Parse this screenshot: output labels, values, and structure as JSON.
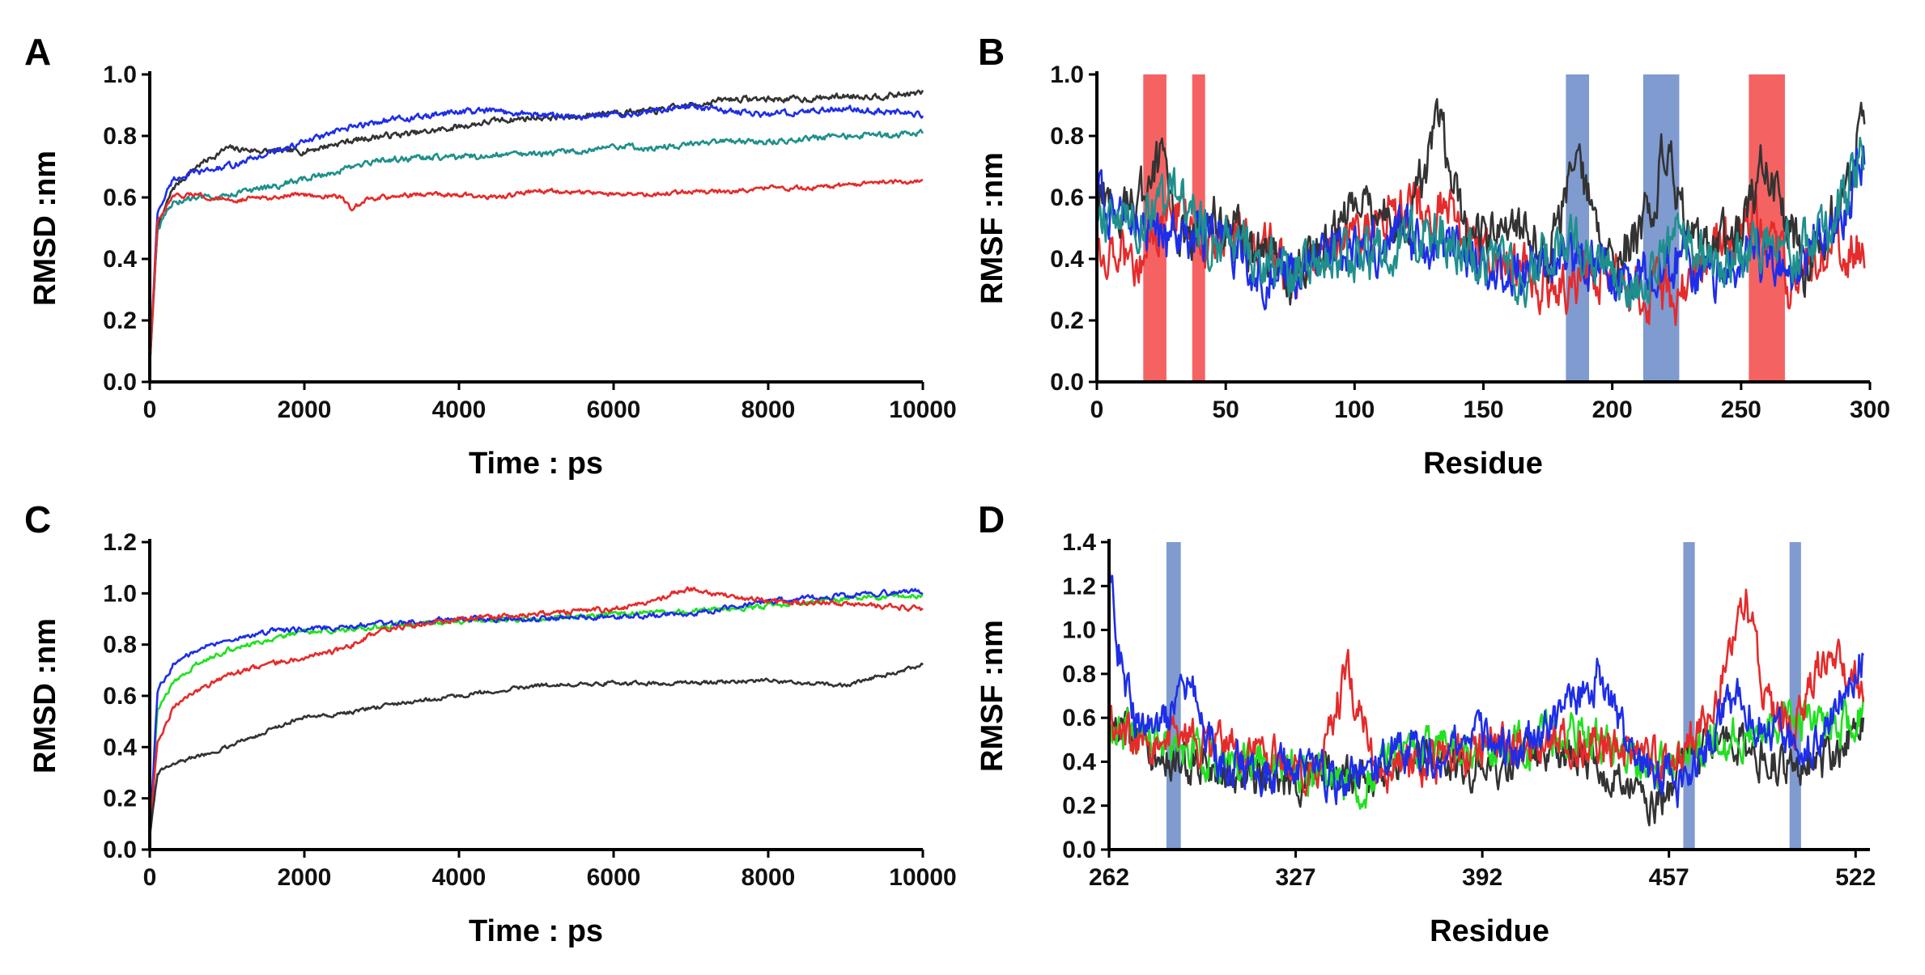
{
  "chart_data": [
    {
      "panel": "A",
      "type": "line",
      "title": "",
      "xlabel": "Time : ps",
      "ylabel": "RMSD :nm",
      "xlim": [
        0,
        10000
      ],
      "ylim": [
        0.0,
        1.0
      ],
      "xticks": [
        0,
        2000,
        4000,
        6000,
        8000,
        10000
      ],
      "xtick_labels": [
        "0",
        "2000",
        "4000",
        "6000",
        "8000",
        "10000"
      ],
      "yticks": [
        0.0,
        0.2,
        0.4,
        0.6,
        0.8,
        1.0
      ],
      "ytick_labels": [
        "0.0",
        "0.2",
        "0.4",
        "0.6",
        "0.8",
        "1.0"
      ],
      "highlights": [],
      "series": [
        {
          "name": "black",
          "color": "#333333",
          "noise": 0.008,
          "x": [
            0,
            100,
            300,
            600,
            1000,
            1500,
            2000,
            2500,
            3000,
            3500,
            4000,
            4500,
            5000,
            5500,
            6000,
            6500,
            7000,
            7500,
            8000,
            8500,
            9000,
            9500,
            10000
          ],
          "y": [
            0.05,
            0.5,
            0.63,
            0.7,
            0.76,
            0.75,
            0.75,
            0.78,
            0.8,
            0.81,
            0.83,
            0.85,
            0.86,
            0.86,
            0.88,
            0.88,
            0.9,
            0.92,
            0.92,
            0.92,
            0.93,
            0.93,
            0.94
          ]
        },
        {
          "name": "blue",
          "color": "#1e2ee8",
          "noise": 0.008,
          "x": [
            0,
            100,
            300,
            600,
            1000,
            1500,
            2000,
            2500,
            3000,
            3500,
            4000,
            4500,
            5000,
            5500,
            6000,
            6500,
            7000,
            7500,
            8000,
            8500,
            9000,
            9500,
            10000
          ],
          "y": [
            0.05,
            0.55,
            0.66,
            0.68,
            0.7,
            0.74,
            0.78,
            0.82,
            0.85,
            0.86,
            0.88,
            0.88,
            0.87,
            0.86,
            0.87,
            0.88,
            0.9,
            0.88,
            0.87,
            0.88,
            0.89,
            0.88,
            0.87
          ]
        },
        {
          "name": "teal",
          "color": "#1f8f8c",
          "noise": 0.008,
          "x": [
            0,
            100,
            300,
            600,
            1000,
            1500,
            2000,
            2500,
            3000,
            3500,
            4000,
            4500,
            5000,
            5500,
            6000,
            6500,
            7000,
            7500,
            8000,
            8500,
            9000,
            9500,
            10000
          ],
          "y": [
            0.05,
            0.5,
            0.58,
            0.6,
            0.61,
            0.63,
            0.66,
            0.69,
            0.72,
            0.73,
            0.73,
            0.74,
            0.74,
            0.75,
            0.77,
            0.76,
            0.77,
            0.78,
            0.78,
            0.79,
            0.8,
            0.8,
            0.81
          ]
        },
        {
          "name": "red",
          "color": "#e52b2b",
          "noise": 0.006,
          "x": [
            0,
            100,
            300,
            600,
            1000,
            1500,
            2000,
            2500,
            2600,
            2800,
            3000,
            3500,
            4000,
            4500,
            5000,
            5500,
            6000,
            6500,
            7000,
            7500,
            8000,
            8500,
            9000,
            9500,
            10000
          ],
          "y": [
            0.05,
            0.52,
            0.6,
            0.61,
            0.59,
            0.6,
            0.61,
            0.6,
            0.56,
            0.59,
            0.6,
            0.61,
            0.61,
            0.6,
            0.62,
            0.62,
            0.61,
            0.61,
            0.62,
            0.62,
            0.63,
            0.63,
            0.64,
            0.65,
            0.65
          ]
        }
      ]
    },
    {
      "panel": "B",
      "type": "line",
      "title": "",
      "xlabel": "Residue",
      "ylabel": "RMSF :nm",
      "xlim": [
        0,
        300
      ],
      "ylim": [
        0.0,
        1.0
      ],
      "xticks": [
        0,
        50,
        100,
        150,
        200,
        250,
        300
      ],
      "xtick_labels": [
        "0",
        "50",
        "100",
        "150",
        "200",
        "250",
        "300"
      ],
      "yticks": [
        0.0,
        0.2,
        0.4,
        0.6,
        0.8,
        1.0
      ],
      "ytick_labels": [
        "0.0",
        "0.2",
        "0.4",
        "0.6",
        "0.8",
        "1.0"
      ],
      "highlights": [
        {
          "from": 18,
          "to": 27,
          "color": "#f56262"
        },
        {
          "from": 37,
          "to": 42,
          "color": "#f56262"
        },
        {
          "from": 182,
          "to": 191,
          "color": "#7f9bd0"
        },
        {
          "from": 212,
          "to": 226,
          "color": "#7f9bd0"
        },
        {
          "from": 253,
          "to": 267,
          "color": "#f56262"
        }
      ],
      "series": [
        {
          "name": "red",
          "color": "#e52b2b",
          "noise": 0.07,
          "x": [
            0,
            15,
            30,
            45,
            60,
            75,
            90,
            105,
            120,
            135,
            150,
            165,
            180,
            195,
            210,
            225,
            240,
            255,
            270,
            285,
            298
          ],
          "y": [
            0.45,
            0.42,
            0.55,
            0.45,
            0.48,
            0.36,
            0.42,
            0.5,
            0.56,
            0.55,
            0.42,
            0.35,
            0.32,
            0.35,
            0.3,
            0.28,
            0.42,
            0.52,
            0.3,
            0.45,
            0.43
          ]
        },
        {
          "name": "black",
          "color": "#333333",
          "noise": 0.07,
          "x": [
            0,
            15,
            25,
            35,
            45,
            60,
            75,
            90,
            105,
            120,
            133,
            145,
            160,
            175,
            186,
            200,
            215,
            220,
            235,
            250,
            260,
            275,
            290,
            298
          ],
          "y": [
            0.6,
            0.55,
            0.72,
            0.45,
            0.55,
            0.42,
            0.35,
            0.48,
            0.58,
            0.5,
            0.82,
            0.45,
            0.52,
            0.4,
            0.72,
            0.36,
            0.55,
            0.76,
            0.4,
            0.5,
            0.72,
            0.36,
            0.62,
            0.88
          ]
        },
        {
          "name": "blue",
          "color": "#1e2ee8",
          "noise": 0.07,
          "x": [
            0,
            15,
            30,
            45,
            60,
            75,
            90,
            105,
            120,
            135,
            150,
            165,
            180,
            195,
            210,
            225,
            240,
            255,
            270,
            285,
            298
          ],
          "y": [
            0.62,
            0.5,
            0.44,
            0.5,
            0.38,
            0.35,
            0.4,
            0.45,
            0.46,
            0.43,
            0.4,
            0.36,
            0.42,
            0.38,
            0.34,
            0.4,
            0.36,
            0.42,
            0.38,
            0.46,
            0.72
          ]
        },
        {
          "name": "teal",
          "color": "#1f8f8c",
          "noise": 0.07,
          "x": [
            0,
            15,
            30,
            45,
            60,
            75,
            90,
            105,
            120,
            135,
            150,
            165,
            180,
            195,
            210,
            225,
            240,
            255,
            270,
            285,
            298
          ],
          "y": [
            0.55,
            0.52,
            0.62,
            0.45,
            0.42,
            0.35,
            0.42,
            0.4,
            0.46,
            0.48,
            0.38,
            0.35,
            0.45,
            0.4,
            0.32,
            0.45,
            0.38,
            0.45,
            0.42,
            0.5,
            0.76
          ]
        }
      ]
    },
    {
      "panel": "C",
      "type": "line",
      "title": "",
      "xlabel": "Time : ps",
      "ylabel": "RMSD :nm",
      "xlim": [
        0,
        10000
      ],
      "ylim": [
        0.0,
        1.2
      ],
      "xticks": [
        0,
        2000,
        4000,
        6000,
        8000,
        10000
      ],
      "xtick_labels": [
        "0",
        "2000",
        "4000",
        "6000",
        "8000",
        "10000"
      ],
      "yticks": [
        0.0,
        0.2,
        0.4,
        0.6,
        0.8,
        1.0,
        1.2
      ],
      "ytick_labels": [
        "0.0",
        "0.2",
        "0.4",
        "0.6",
        "0.8",
        "1.0",
        "1.2"
      ],
      "highlights": [],
      "series": [
        {
          "name": "green",
          "color": "#22e022",
          "noise": 0.008,
          "x": [
            0,
            100,
            300,
            600,
            1000,
            1500,
            2000,
            2500,
            3000,
            4000,
            5000,
            6000,
            7000,
            8000,
            9000,
            10000
          ],
          "y": [
            0.05,
            0.55,
            0.65,
            0.72,
            0.78,
            0.82,
            0.85,
            0.86,
            0.87,
            0.89,
            0.9,
            0.92,
            0.93,
            0.95,
            0.98,
            0.99
          ]
        },
        {
          "name": "blue",
          "color": "#1e2ee8",
          "noise": 0.008,
          "x": [
            0,
            100,
            300,
            600,
            1000,
            1500,
            2000,
            2500,
            3000,
            4000,
            5000,
            6000,
            7000,
            8000,
            9000,
            10000
          ],
          "y": [
            0.05,
            0.62,
            0.72,
            0.78,
            0.82,
            0.85,
            0.86,
            0.87,
            0.88,
            0.9,
            0.9,
            0.91,
            0.92,
            0.97,
            0.99,
            1.01
          ]
        },
        {
          "name": "red",
          "color": "#e52b2b",
          "noise": 0.008,
          "x": [
            0,
            100,
            300,
            600,
            1000,
            1500,
            2000,
            2500,
            3000,
            4000,
            5000,
            6000,
            6500,
            7000,
            7500,
            8000,
            9000,
            10000
          ],
          "y": [
            0.05,
            0.42,
            0.55,
            0.62,
            0.68,
            0.72,
            0.75,
            0.78,
            0.86,
            0.9,
            0.92,
            0.94,
            0.97,
            1.02,
            0.99,
            0.97,
            0.96,
            0.94
          ]
        },
        {
          "name": "black",
          "color": "#333333",
          "noise": 0.006,
          "x": [
            0,
            100,
            300,
            600,
            1000,
            1500,
            2000,
            2500,
            3000,
            4000,
            5000,
            6000,
            7000,
            8000,
            9000,
            10000
          ],
          "y": [
            0.05,
            0.3,
            0.34,
            0.36,
            0.4,
            0.46,
            0.52,
            0.53,
            0.56,
            0.6,
            0.64,
            0.65,
            0.65,
            0.66,
            0.64,
            0.72
          ]
        }
      ]
    },
    {
      "panel": "D",
      "type": "line",
      "title": "",
      "xlabel": "Residue",
      "ylabel": "RMSF :nm",
      "xlim": [
        262,
        527
      ],
      "ylim": [
        0.0,
        1.4
      ],
      "xticks": [
        262,
        327,
        392,
        457,
        522
      ],
      "xtick_labels": [
        "262",
        "327",
        "392",
        "457",
        "522"
      ],
      "yticks": [
        0.0,
        0.2,
        0.4,
        0.6,
        0.8,
        1.0,
        1.2,
        1.4
      ],
      "ytick_labels": [
        "0.0",
        "0.2",
        "0.4",
        "0.6",
        "0.8",
        "1.0",
        "1.2",
        "1.4"
      ],
      "highlights": [
        {
          "from": 282,
          "to": 287,
          "color": "#7f9bd0"
        },
        {
          "from": 462,
          "to": 466,
          "color": "#7f9bd0"
        },
        {
          "from": 499,
          "to": 503,
          "color": "#7f9bd0"
        }
      ],
      "series": [
        {
          "name": "black",
          "color": "#333333",
          "noise": 0.08,
          "x": [
            262,
            275,
            290,
            305,
            320,
            335,
            350,
            365,
            380,
            395,
            410,
            425,
            440,
            452,
            465,
            480,
            495,
            510,
            525
          ],
          "y": [
            0.6,
            0.45,
            0.4,
            0.35,
            0.3,
            0.35,
            0.3,
            0.45,
            0.4,
            0.38,
            0.42,
            0.45,
            0.3,
            0.2,
            0.42,
            0.5,
            0.38,
            0.4,
            0.6
          ]
        },
        {
          "name": "green",
          "color": "#22e022",
          "noise": 0.08,
          "x": [
            262,
            275,
            290,
            305,
            320,
            335,
            350,
            365,
            380,
            395,
            410,
            425,
            440,
            455,
            470,
            485,
            500,
            515,
            525
          ],
          "y": [
            0.55,
            0.5,
            0.45,
            0.4,
            0.38,
            0.35,
            0.3,
            0.42,
            0.5,
            0.45,
            0.5,
            0.55,
            0.42,
            0.38,
            0.45,
            0.55,
            0.6,
            0.55,
            0.62
          ]
        },
        {
          "name": "red",
          "color": "#e52b2b",
          "noise": 0.08,
          "x": [
            262,
            275,
            290,
            305,
            320,
            335,
            345,
            355,
            370,
            385,
            400,
            415,
            430,
            445,
            460,
            470,
            478,
            484,
            490,
            500,
            512,
            525
          ],
          "y": [
            0.6,
            0.45,
            0.5,
            0.45,
            0.4,
            0.35,
            0.82,
            0.35,
            0.4,
            0.42,
            0.5,
            0.48,
            0.5,
            0.45,
            0.4,
            0.6,
            0.9,
            1.18,
            0.65,
            0.55,
            0.9,
            0.75
          ]
        },
        {
          "name": "blue",
          "color": "#1e2ee8",
          "noise": 0.08,
          "x": [
            262,
            265,
            270,
            280,
            290,
            300,
            315,
            330,
            345,
            360,
            375,
            390,
            405,
            420,
            432,
            445,
            460,
            470,
            480,
            490,
            505,
            515,
            525
          ],
          "y": [
            1.3,
            0.95,
            0.6,
            0.55,
            0.72,
            0.4,
            0.35,
            0.38,
            0.3,
            0.45,
            0.42,
            0.5,
            0.45,
            0.6,
            0.8,
            0.4,
            0.3,
            0.48,
            0.7,
            0.55,
            0.45,
            0.62,
            0.92
          ]
        }
      ]
    }
  ]
}
